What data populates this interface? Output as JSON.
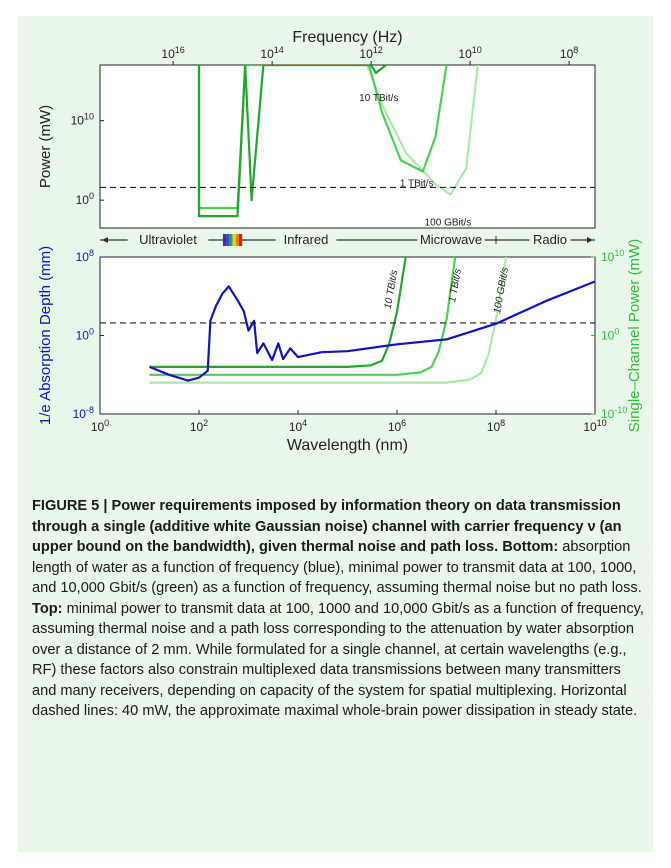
{
  "chart_data": [
    {
      "type": "line",
      "panel": "top",
      "xlabel": "Frequency (Hz)",
      "ylabel": "Power (mW)",
      "x_scale": "log",
      "y_scale": "log",
      "x_ticks": [
        {
          "base": "10",
          "exp": "16"
        },
        {
          "base": "10",
          "exp": "14"
        },
        {
          "base": "10",
          "exp": "12"
        },
        {
          "base": "10",
          "exp": "10"
        },
        {
          "base": "10",
          "exp": "8"
        }
      ],
      "y_ticks": [
        {
          "base": "10",
          "exp": "10"
        },
        {
          "base": "10",
          "exp": "0"
        }
      ],
      "series": [
        {
          "name": "10 TBit/s",
          "color": "#1fa82d",
          "points": [
            [
              3000000000000000.0,
              1e+17
            ],
            [
              3000000000000000.0,
              0.01
            ],
            [
              500000000000000.0,
              0.01
            ],
            [
              350000000000000.0,
              1e+17
            ],
            [
              260000000000000.0,
              1.0
            ],
            [
              150000000000000.0,
              1e+17
            ],
            [
              1000000000000.0,
              1e+17
            ],
            [
              800000000000.0,
              1e+16
            ],
            [
              500000000000.0,
              1e+17
            ]
          ]
        },
        {
          "name": "1 TBit/s",
          "color": "#4bd052",
          "points": [
            [
              3000000000000000.0,
              1e+17
            ],
            [
              3000000000000000.0,
              -1
            ],
            [
              500000000000000.0,
              -1
            ],
            [
              350000000000000.0,
              1e+17
            ],
            [
              140000000000000.0,
              1e+17
            ],
            [
              1100000000000.0,
              1e+17
            ],
            [
              600000000000.0,
              100000000000.0
            ],
            [
              250000000000.0,
              100000.0
            ],
            [
              90000000000.0,
              4000.0
            ],
            [
              50000000000.0,
              100000000.0
            ],
            [
              30000000000.0,
              1e+17
            ]
          ]
        },
        {
          "name": "100 GBit/s",
          "color": "#aaeaa7",
          "points": [
            [
              3000000000000000.0,
              1e+17
            ],
            [
              3000000000000000.0,
              -2
            ],
            [
              500000000000000.0,
              -2
            ],
            [
              350000000000000.0,
              1e+17
            ],
            [
              140000000000000.0,
              1e+17
            ],
            [
              1200000000000.0,
              1e+17
            ],
            [
              600000000000.0,
              1000000000000.0
            ],
            [
              200000000000.0,
              1000000.0
            ],
            [
              50000000000.0,
              100.0
            ],
            [
              25000000000.0,
              5.0
            ],
            [
              12000000000.0,
              10000.0
            ],
            [
              7000000000.0,
              1e+17
            ]
          ]
        }
      ],
      "reference_line": {
        "label": "40 mW",
        "value": 40,
        "style": "dashed"
      },
      "curve_labels": [
        "10 TBit/s",
        "1 TBit/s",
        "100 GBit/s"
      ]
    },
    {
      "type": "line",
      "panel": "bottom",
      "xlabel": "Wavelength (nm)",
      "ylabel_left": "1/e Absorption Depth (mm)",
      "ylabel_right": "Single–Channel Power (mW)",
      "x_scale": "log",
      "y_scale": "log",
      "x_range": [
        1,
        10000000000.0
      ],
      "ylim_left": [
        1e-08,
        100000000.0
      ],
      "ylim_right": [
        1e-10,
        10000000000.0
      ],
      "x_ticks": [
        {
          "base": "10",
          "exp": "0"
        },
        {
          "base": "10",
          "exp": "2"
        },
        {
          "base": "10",
          "exp": "4"
        },
        {
          "base": "10",
          "exp": "6"
        },
        {
          "base": "10",
          "exp": "8"
        },
        {
          "base": "10",
          "exp": "10"
        }
      ],
      "y_ticks_left": [
        {
          "base": "10",
          "exp": "8"
        },
        {
          "base": "10",
          "exp": "0"
        },
        {
          "base": "10",
          "exp": "-8"
        }
      ],
      "y_ticks_right": [
        {
          "base": "10",
          "exp": "10"
        },
        {
          "base": "10",
          "exp": "0"
        },
        {
          "base": "10",
          "exp": "-10"
        }
      ],
      "bands": [
        "Ultraviolet",
        "Infrared",
        "Microwave",
        "Radio"
      ],
      "absorption_series": {
        "name": "absorption depth (blue)",
        "color": "#1313c4",
        "points": [
          [
            10,
            -3.2
          ],
          [
            25,
            -4.0
          ],
          [
            60,
            -4.6
          ],
          [
            100,
            -4.3
          ],
          [
            150,
            -3.6
          ],
          [
            170,
            1.5
          ],
          [
            220,
            3.0
          ],
          [
            300,
            4.3
          ],
          [
            400,
            5.0
          ],
          [
            600,
            3.6
          ],
          [
            800,
            2.5
          ],
          [
            1000,
            0.5
          ],
          [
            1300,
            1.5
          ],
          [
            1500,
            -1.8
          ],
          [
            2000,
            -0.8
          ],
          [
            3000,
            -2.5
          ],
          [
            4000,
            -0.8
          ],
          [
            5000,
            -2.4
          ],
          [
            7000,
            -1.3
          ],
          [
            10000,
            -2.2
          ],
          [
            30000,
            -1.7
          ],
          [
            100000.0,
            -1.6
          ],
          [
            1000000.0,
            -0.9
          ],
          [
            10000000.0,
            -0.4
          ],
          [
            100000000.0,
            1.2
          ],
          [
            1000000000.0,
            3.5
          ],
          [
            10000000000.0,
            5.5
          ]
        ]
      },
      "power_series": [
        {
          "name": "10 TBit/s",
          "color": "#1fa82d",
          "points": [
            [
              10,
              -4.0
            ],
            [
              100000.0,
              -4.0
            ],
            [
              300000.0,
              -3.8
            ],
            [
              500000.0,
              -3.2
            ],
            [
              700000.0,
              -1
            ],
            [
              1000000.0,
              3
            ],
            [
              1500000.0,
              10
            ]
          ]
        },
        {
          "name": "1 TBit/s",
          "color": "#4bd052",
          "points": [
            [
              10,
              -5.0
            ],
            [
              1000000.0,
              -5.0
            ],
            [
              3000000.0,
              -4.7
            ],
            [
              5000000.0,
              -4.0
            ],
            [
              7000000.0,
              -2
            ],
            [
              10000000.0,
              2
            ],
            [
              15000000.0,
              10
            ]
          ]
        },
        {
          "name": "100 GBit/s",
          "color": "#aaeaa7",
          "points": [
            [
              10,
              -6.0
            ],
            [
              10000000.0,
              -6.0
            ],
            [
              30000000.0,
              -5.6
            ],
            [
              50000000.0,
              -4.8
            ],
            [
              70000000.0,
              -2.5
            ],
            [
              100000000.0,
              2
            ],
            [
              160000000.0,
              10
            ]
          ]
        }
      ],
      "reference_line": {
        "label": "40 mW",
        "value": 40,
        "style": "dashed"
      },
      "curve_labels": [
        "10 TBit/s",
        "1 TBit/s",
        "100 GBit/s"
      ]
    }
  ],
  "caption": {
    "bold": "FIGURE 5 | Power requirements imposed by information theory on data transmission through a single (additive white Gaussian noise) channel with carrier frequency ν (an upper bound on the bandwidth), given thermal noise and path loss.",
    "bottom_label": "Bottom:",
    "bottom_text": " absorption length of water as a function of frequency (blue), minimal power to transmit data at 100, 1000, and 10,000 Gbit/s (green) as a function of frequency, assuming thermal noise but no path loss.",
    "top_label": "Top:",
    "top_text": " minimal power to transmit data at 100, 1000 and 10,000 Gbit/s as a function of frequency, assuming thermal noise and a path loss corresponding to the attenuation by water absorption over a distance of 2 mm. While formulated for a single channel, at certain wavelengths (e.g., RF) these factors also constrain multiplexed data transmissions between many transmitters and many receivers, depending on capacity of the system for spatial multiplexing. Horizontal dashed lines: 40 mW, the approximate maximal whole-brain power dissipation in steady state."
  }
}
